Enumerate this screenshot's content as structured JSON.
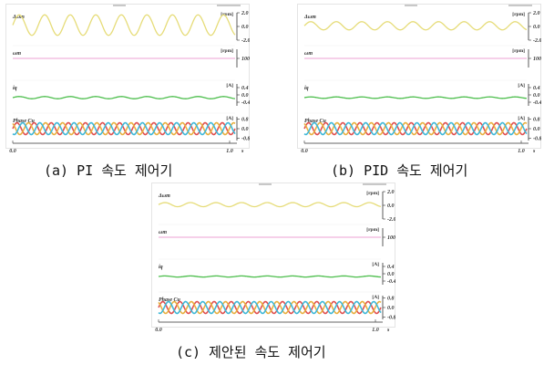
{
  "figure": {
    "captions": [
      "(a) PI 속도 제어기",
      "(b) PID 속도 제어기",
      "(c) 제안된 속도 제어기"
    ]
  },
  "chart_data": [
    {
      "type": "line",
      "panel": "a",
      "caption": "(a) PI 속도 제어기",
      "x_ticks": [
        "0.0",
        "1.0"
      ],
      "x_unit": "s",
      "subplots": [
        {
          "label": "Δωm",
          "unit": "[rpm]",
          "ticks": [
            "2.0",
            "0.0",
            "-2.0"
          ],
          "ylim": [
            -2,
            2
          ],
          "series": [
            {
              "color": "#e6dc78",
              "offset": 0.2,
              "amplitude": 1.5,
              "cycles": 8.7
            }
          ]
        },
        {
          "label": "ωm",
          "unit": "[rpm]",
          "ticks": [
            "100"
          ],
          "ylim": [
            0,
            200
          ],
          "series": [
            {
              "color": "#f0b4dc",
              "offset": 100,
              "amplitude": 0,
              "cycles": 0
            }
          ]
        },
        {
          "label": "iq",
          "unit": "[A]",
          "ticks": [
            "0.4",
            "0.0",
            "-0.4"
          ],
          "ylim": [
            -0.6,
            0.6
          ],
          "series": [
            {
              "color": "#4cbe4c",
              "offset": -0.15,
              "amplitude": 0.06,
              "cycles": 8.7
            }
          ]
        },
        {
          "label": "Phase Cu",
          "unit": "[A]",
          "ticks": [
            "0.8",
            "0.0",
            "-0.8"
          ],
          "ylim": [
            -1,
            1
          ],
          "series": [
            {
              "color": "#e05050",
              "offset": 0,
              "amplitude": 0.5,
              "cycles": 13,
              "phase": 0
            },
            {
              "color": "#e8b040",
              "offset": 0,
              "amplitude": 0.5,
              "cycles": 13,
              "phase": 2.094
            },
            {
              "color": "#40b8d8",
              "offset": 0,
              "amplitude": 0.5,
              "cycles": 13,
              "phase": 4.189
            }
          ]
        }
      ]
    },
    {
      "type": "line",
      "panel": "b",
      "caption": "(b) PID 속도 제어기",
      "x_ticks": [
        "0.0",
        "1.0"
      ],
      "x_unit": "s",
      "subplots": [
        {
          "label": "Δωm",
          "unit": "[rpm]",
          "ticks": [
            "2.0",
            "0.0",
            "-2.0"
          ],
          "ylim": [
            -2,
            2
          ],
          "series": [
            {
              "color": "#e6dc78",
              "offset": 0.1,
              "amplitude": 0.6,
              "cycles": 8.7
            }
          ]
        },
        {
          "label": "ωm",
          "unit": "[rpm]",
          "ticks": [
            "100"
          ],
          "ylim": [
            0,
            200
          ],
          "series": [
            {
              "color": "#f0b4dc",
              "offset": 100,
              "amplitude": 0,
              "cycles": 0
            }
          ]
        },
        {
          "label": "iq",
          "unit": "[A]",
          "ticks": [
            "0.4",
            "0.0",
            "-0.4"
          ],
          "ylim": [
            -0.6,
            0.6
          ],
          "series": [
            {
              "color": "#4cbe4c",
              "offset": -0.15,
              "amplitude": 0.04,
              "cycles": 8.7
            }
          ]
        },
        {
          "label": "Phase Cu",
          "unit": "[A]",
          "ticks": [
            "0.8",
            "0.0",
            "-0.8"
          ],
          "ylim": [
            -1,
            1
          ],
          "series": [
            {
              "color": "#e05050",
              "offset": 0,
              "amplitude": 0.5,
              "cycles": 13,
              "phase": 0
            },
            {
              "color": "#e8b040",
              "offset": 0,
              "amplitude": 0.5,
              "cycles": 13,
              "phase": 2.094
            },
            {
              "color": "#40b8d8",
              "offset": 0,
              "amplitude": 0.5,
              "cycles": 13,
              "phase": 4.189
            }
          ]
        }
      ]
    },
    {
      "type": "line",
      "panel": "c",
      "caption": "(c) 제안된 속도 제어기",
      "x_ticks": [
        "0.0",
        "1.0"
      ],
      "x_unit": "s",
      "subplots": [
        {
          "label": "Δωm",
          "unit": "[rpm]",
          "ticks": [
            "2.0",
            "0.0",
            "-2.0"
          ],
          "ylim": [
            -2,
            2
          ],
          "series": [
            {
              "color": "#e6dc78",
              "offset": 0.1,
              "amplitude": 0.3,
              "cycles": 8.7
            }
          ]
        },
        {
          "label": "ωm",
          "unit": "[rpm]",
          "ticks": [
            "100"
          ],
          "ylim": [
            0,
            200
          ],
          "series": [
            {
              "color": "#f0b4dc",
              "offset": 100,
              "amplitude": 0,
              "cycles": 0
            }
          ]
        },
        {
          "label": "iq",
          "unit": "[A]",
          "ticks": [
            "0.4",
            "0.0",
            "-0.4"
          ],
          "ylim": [
            -0.6,
            0.6
          ],
          "series": [
            {
              "color": "#4cbe4c",
              "offset": -0.15,
              "amplitude": 0.03,
              "cycles": 8.7
            }
          ]
        },
        {
          "label": "Phase Cu",
          "unit": "[A]",
          "ticks": [
            "0.8",
            "0.0",
            "-0.8"
          ],
          "ylim": [
            -1,
            1
          ],
          "series": [
            {
              "color": "#e05050",
              "offset": 0,
              "amplitude": 0.5,
              "cycles": 13,
              "phase": 0
            },
            {
              "color": "#e8b040",
              "offset": 0,
              "amplitude": 0.5,
              "cycles": 13,
              "phase": 2.094
            },
            {
              "color": "#40b8d8",
              "offset": 0,
              "amplitude": 0.5,
              "cycles": 13,
              "phase": 4.189
            }
          ]
        }
      ]
    }
  ]
}
